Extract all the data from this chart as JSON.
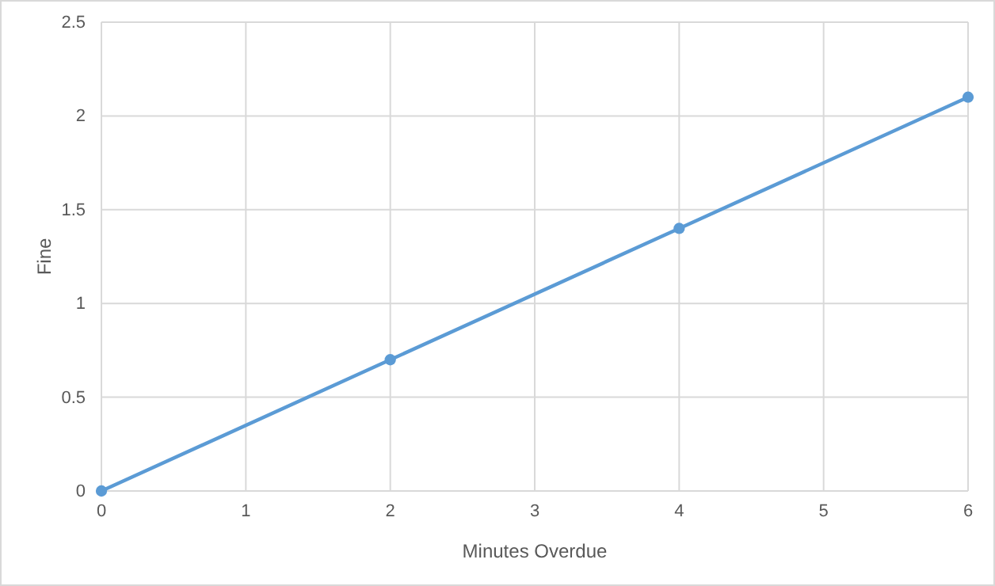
{
  "chart_data": {
    "type": "line",
    "xlabel": "Minutes Overdue",
    "ylabel": "Fine",
    "x": [
      0,
      2,
      4,
      6
    ],
    "series": [
      {
        "color": "#5b9bd5",
        "values": [
          0,
          0.7,
          1.4,
          2.1
        ]
      }
    ],
    "xlim": [
      0,
      6
    ],
    "xticks": [
      0,
      1,
      2,
      3,
      4,
      5,
      6
    ],
    "ylim": [
      0,
      2.5
    ],
    "yticks": [
      0,
      0.5,
      1,
      1.5,
      2,
      2.5
    ],
    "grid": true,
    "marker": "circle",
    "line_style": "solid"
  }
}
